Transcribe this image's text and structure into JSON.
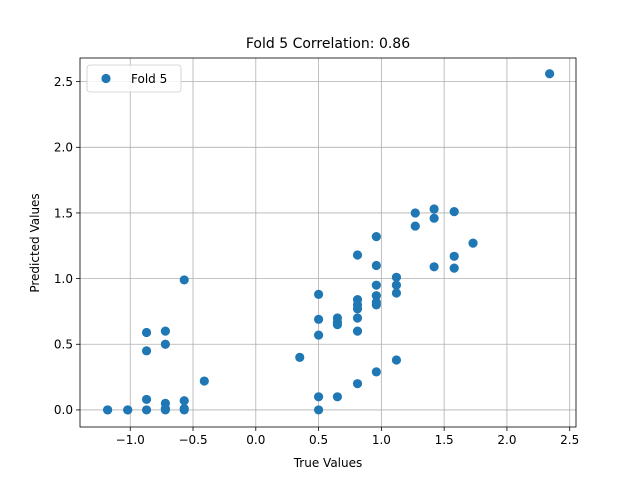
{
  "chart_data": {
    "type": "scatter",
    "title": "Fold 5 Correlation: 0.86",
    "xlabel": "True Values",
    "ylabel": "Predicted Values",
    "xlim": [
      -1.4,
      2.55
    ],
    "ylim": [
      -0.13,
      2.68
    ],
    "x_ticks": [
      -1.0,
      -0.5,
      0.0,
      0.5,
      1.0,
      1.5,
      2.0,
      2.5
    ],
    "x_tick_labels": [
      "−1.0",
      "−0.5",
      "0.0",
      "0.5",
      "1.0",
      "1.5",
      "2.0",
      "2.5"
    ],
    "y_ticks": [
      0.0,
      0.5,
      1.0,
      1.5,
      2.0,
      2.5
    ],
    "y_tick_labels": [
      "0.0",
      "0.5",
      "1.0",
      "1.5",
      "2.0",
      "2.5"
    ],
    "grid": true,
    "legend": {
      "placement": "top-left",
      "entries": [
        "Fold 5"
      ]
    },
    "series": [
      {
        "name": "Fold 5",
        "color": "#1f77b4",
        "points": [
          [
            -1.18,
            0.0
          ],
          [
            -1.18,
            0.0
          ],
          [
            -1.02,
            0.0
          ],
          [
            -1.02,
            0.0
          ],
          [
            -0.87,
            0.0
          ],
          [
            -0.87,
            0.08
          ],
          [
            -0.87,
            0.45
          ],
          [
            -0.87,
            0.59
          ],
          [
            -0.72,
            0.0
          ],
          [
            -0.72,
            0.01
          ],
          [
            -0.72,
            0.05
          ],
          [
            -0.72,
            0.5
          ],
          [
            -0.72,
            0.6
          ],
          [
            -0.57,
            0.0
          ],
          [
            -0.57,
            0.01
          ],
          [
            -0.57,
            0.07
          ],
          [
            -0.57,
            0.99
          ],
          [
            -0.41,
            0.22
          ],
          [
            0.35,
            0.4
          ],
          [
            0.5,
            0.0
          ],
          [
            0.5,
            0.1
          ],
          [
            0.5,
            0.57
          ],
          [
            0.5,
            0.69
          ],
          [
            0.5,
            0.88
          ],
          [
            0.65,
            0.1
          ],
          [
            0.65,
            0.65
          ],
          [
            0.65,
            0.67
          ],
          [
            0.65,
            0.7
          ],
          [
            0.81,
            0.2
          ],
          [
            0.81,
            0.6
          ],
          [
            0.81,
            0.7
          ],
          [
            0.81,
            0.77
          ],
          [
            0.81,
            0.8
          ],
          [
            0.81,
            0.84
          ],
          [
            0.81,
            1.18
          ],
          [
            0.96,
            0.29
          ],
          [
            0.96,
            0.8
          ],
          [
            0.96,
            0.82
          ],
          [
            0.96,
            0.87
          ],
          [
            0.96,
            0.95
          ],
          [
            0.96,
            1.1
          ],
          [
            0.96,
            1.32
          ],
          [
            1.12,
            0.38
          ],
          [
            1.12,
            0.89
          ],
          [
            1.12,
            0.95
          ],
          [
            1.12,
            1.01
          ],
          [
            1.27,
            1.4
          ],
          [
            1.27,
            1.5
          ],
          [
            1.42,
            1.09
          ],
          [
            1.42,
            1.46
          ],
          [
            1.42,
            1.53
          ],
          [
            1.58,
            1.08
          ],
          [
            1.58,
            1.17
          ],
          [
            1.58,
            1.51
          ],
          [
            1.73,
            1.27
          ],
          [
            2.34,
            2.56
          ]
        ]
      }
    ]
  }
}
